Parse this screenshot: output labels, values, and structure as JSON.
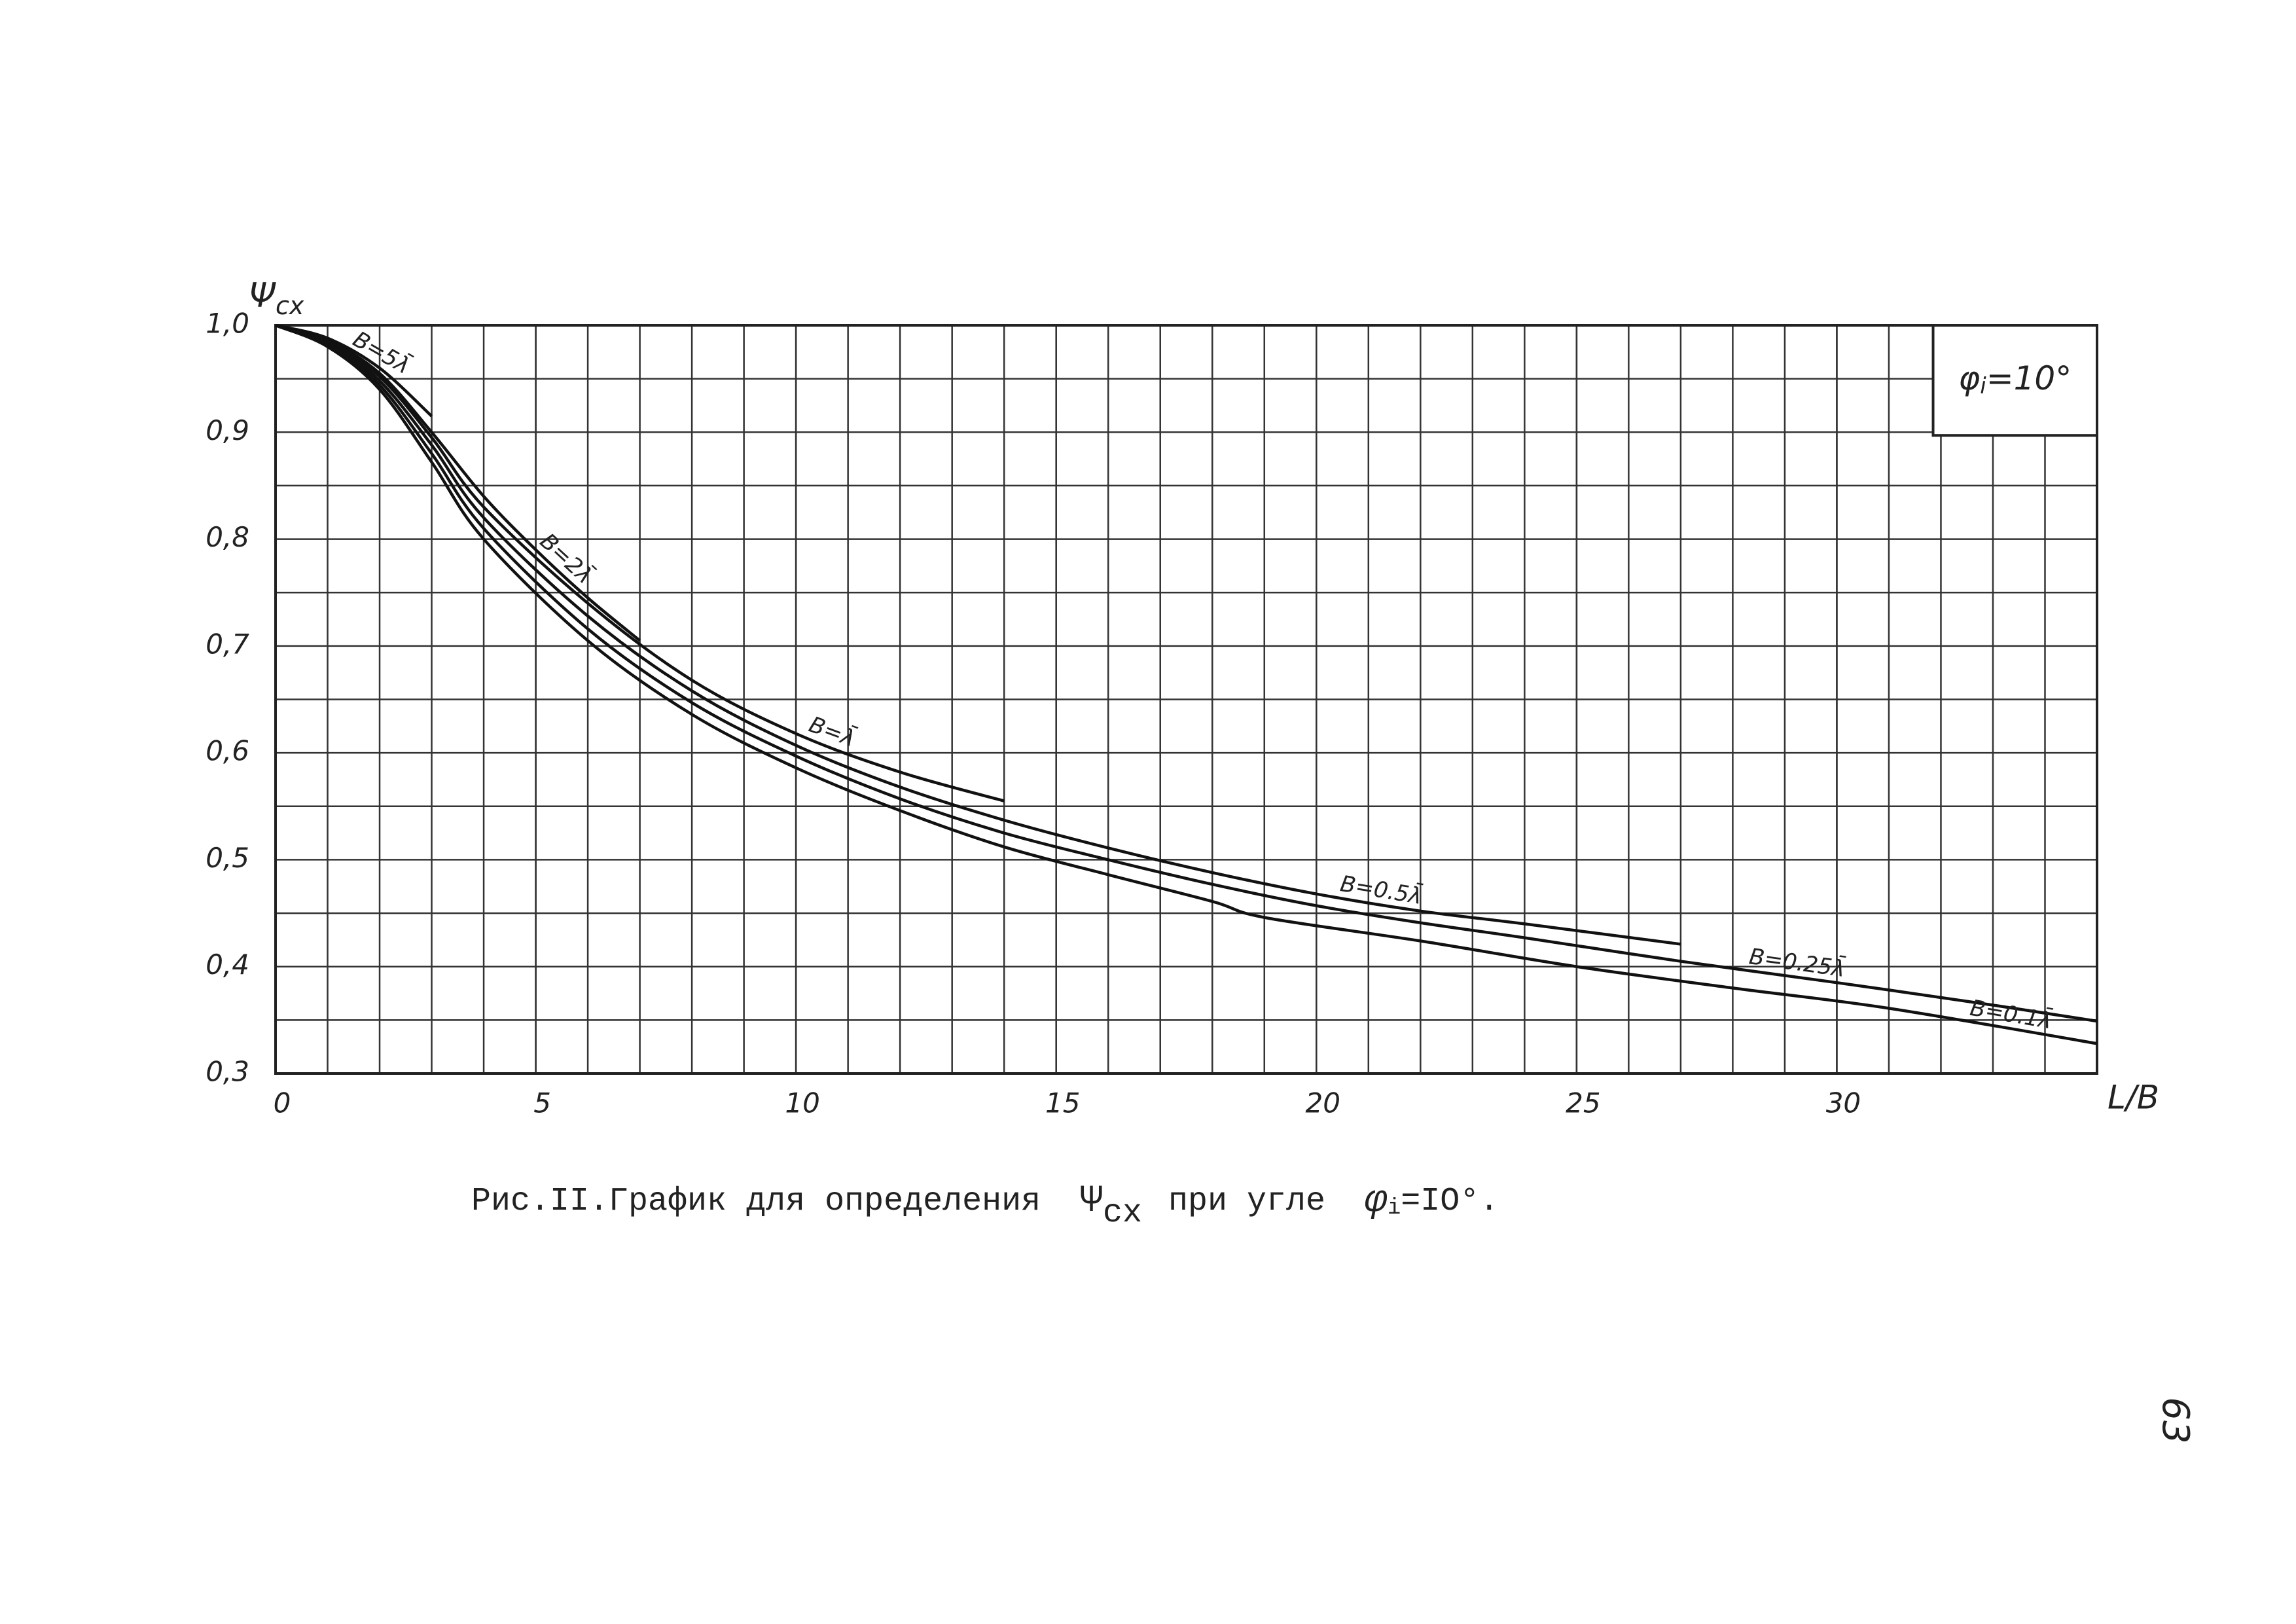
{
  "chart_data": {
    "type": "line",
    "y_label": {
      "symbol": "Ψ",
      "sub": "cx"
    },
    "x_label": "L/B",
    "inset": {
      "symbol": "φ",
      "sub": "i",
      "text": "=10°"
    },
    "caption": {
      "text1": "Рис.II.График для определения",
      "sym1": "Ψ",
      "sub1": "сх",
      "text2": "при угле",
      "sym2": "φ",
      "sub2": "i",
      "text3": "=IO°."
    },
    "page_number": "63",
    "xlim": [
      0,
      35
    ],
    "ylim": [
      0.3,
      1.0
    ],
    "xticks": [
      0,
      5,
      10,
      15,
      20,
      25,
      30
    ],
    "yticks": [
      {
        "value": 0.3,
        "label": "0,3"
      },
      {
        "value": 0.4,
        "label": "0,4"
      },
      {
        "value": 0.5,
        "label": "0,5"
      },
      {
        "value": 0.6,
        "label": "0,6"
      },
      {
        "value": 0.7,
        "label": "0,7"
      },
      {
        "value": 0.8,
        "label": "0,8"
      },
      {
        "value": 0.9,
        "label": "0,9"
      },
      {
        "value": 1.0,
        "label": "1,0"
      }
    ],
    "grid": true,
    "series": [
      {
        "name": "B=5λ̄",
        "color": "#111111",
        "x": [
          0,
          1,
          2,
          3
        ],
        "values": [
          1.0,
          0.988,
          0.96,
          0.915
        ]
      },
      {
        "name": "B=2λ̄",
        "color": "#111111",
        "x": [
          0,
          1,
          2,
          3,
          4,
          5,
          6,
          7
        ],
        "values": [
          1.0,
          0.986,
          0.955,
          0.9,
          0.84,
          0.79,
          0.745,
          0.705
        ]
      },
      {
        "name": "B=λ̄",
        "color": "#111111",
        "x": [
          0,
          1,
          2,
          3,
          4,
          6,
          8,
          10,
          12,
          14
        ],
        "values": [
          1.0,
          0.985,
          0.952,
          0.895,
          0.83,
          0.74,
          0.668,
          0.618,
          0.582,
          0.555
        ]
      },
      {
        "name": "B=0.5λ̄",
        "color": "#111111",
        "x": [
          0,
          1,
          2,
          3,
          4,
          6,
          8,
          10,
          12,
          14,
          16,
          18,
          20,
          22,
          24,
          27
        ],
        "values": [
          1.0,
          0.984,
          0.948,
          0.888,
          0.82,
          0.728,
          0.658,
          0.607,
          0.568,
          0.537,
          0.511,
          0.488,
          0.468,
          0.452,
          0.44,
          0.421
        ]
      },
      {
        "name": "B=0.25λ̄",
        "color": "#111111",
        "x": [
          0,
          1,
          2,
          3,
          4,
          6,
          8,
          10,
          12,
          14,
          16,
          18,
          20,
          22,
          24,
          27,
          30,
          33,
          35
        ],
        "values": [
          1.0,
          0.982,
          0.944,
          0.88,
          0.81,
          0.716,
          0.647,
          0.597,
          0.557,
          0.525,
          0.5,
          0.477,
          0.457,
          0.441,
          0.427,
          0.405,
          0.385,
          0.364,
          0.349
        ]
      },
      {
        "name": "B=0.1λ̄",
        "color": "#111111",
        "x": [
          0,
          1,
          2,
          3,
          4,
          6,
          8,
          10,
          12,
          14,
          16,
          18,
          19,
          22,
          25,
          28,
          31,
          35
        ],
        "values": [
          1.0,
          0.98,
          0.94,
          0.872,
          0.8,
          0.705,
          0.636,
          0.586,
          0.546,
          0.512,
          0.486,
          0.461,
          0.446,
          0.424,
          0.4,
          0.38,
          0.361,
          0.328
        ]
      }
    ]
  }
}
